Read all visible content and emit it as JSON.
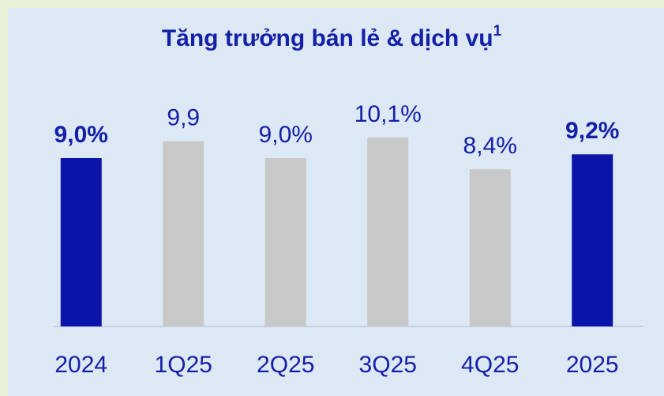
{
  "chart_data": {
    "type": "bar",
    "title": "Tăng trưởng bán lẻ & dịch vụ",
    "title_footnote": "1",
    "categories": [
      "2024",
      "1Q25",
      "2Q25",
      "3Q25",
      "4Q25",
      "2025"
    ],
    "values": [
      9.0,
      9.9,
      9.0,
      10.1,
      8.4,
      9.2
    ],
    "value_labels": [
      "9,0%",
      "9,9",
      "9,0%",
      "10,1%",
      "8,4%",
      "9,2%"
    ],
    "colors": [
      "#0a14a8",
      "#c8c8c8",
      "#c8c8c8",
      "#c8c8c8",
      "#c8c8c8",
      "#0a14a8"
    ],
    "highlight": [
      true,
      false,
      false,
      false,
      false,
      true
    ],
    "ylim": [
      0,
      12
    ]
  }
}
